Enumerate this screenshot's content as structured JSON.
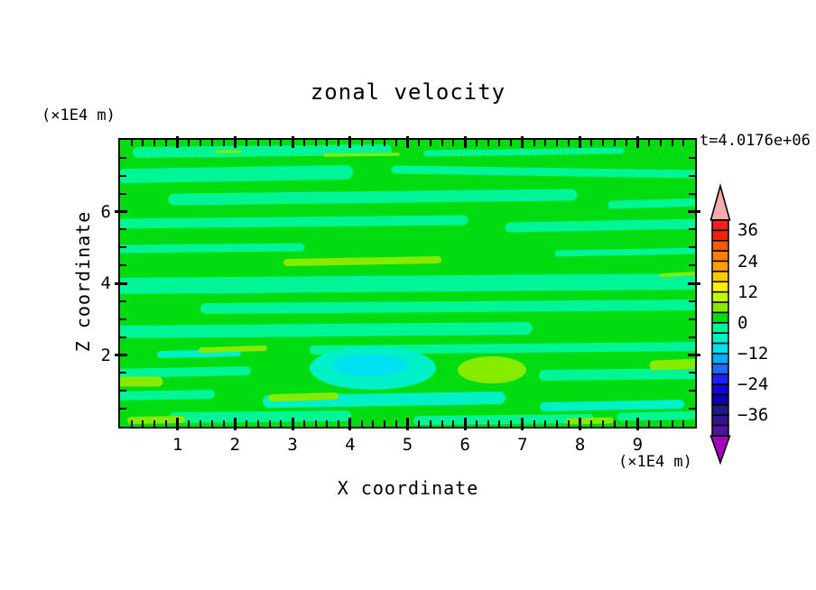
{
  "figure": {
    "title": "zonal velocity",
    "time_annotation": "t=4.0176e+06"
  },
  "x_axis": {
    "title": "X coordinate",
    "unit": "(×1E4 m)",
    "range": [
      0,
      10
    ],
    "major_ticks": [
      1,
      2,
      3,
      4,
      5,
      6,
      7,
      8,
      9
    ],
    "minor_tick_step": 0.2
  },
  "y_axis": {
    "title": "Z coordinate",
    "unit": "(×1E4 m)",
    "range": [
      0,
      8
    ],
    "major_ticks": [
      2,
      4,
      6
    ],
    "minor_tick_step": 0.5
  },
  "colorbar": {
    "labels": [
      "36",
      "24",
      "12",
      "0",
      "−12",
      "−24",
      "−36"
    ],
    "arrow_top_color": "#F5ABAB",
    "arrow_bottom_color": "#A500BE",
    "cells": [
      {
        "range": [
          36,
          40
        ],
        "color": "#FA1E1E"
      },
      {
        "range": [
          32,
          36
        ],
        "color": "#F52000"
      },
      {
        "range": [
          28,
          32
        ],
        "color": "#FF5A00"
      },
      {
        "range": [
          24,
          28
        ],
        "color": "#FF7D00"
      },
      {
        "range": [
          20,
          24
        ],
        "color": "#FFA000"
      },
      {
        "range": [
          16,
          20
        ],
        "color": "#FFC800"
      },
      {
        "range": [
          12,
          16
        ],
        "color": "#FFF000"
      },
      {
        "range": [
          8,
          12
        ],
        "color": "#C8F500"
      },
      {
        "range": [
          4,
          8
        ],
        "color": "#87EB00"
      },
      {
        "range": [
          0,
          4
        ],
        "color": "#00DC0F"
      },
      {
        "range": [
          -4,
          0
        ],
        "color": "#00F596"
      },
      {
        "range": [
          -8,
          -4
        ],
        "color": "#00F0C8"
      },
      {
        "range": [
          -12,
          -8
        ],
        "color": "#00E1F0"
      },
      {
        "range": [
          -16,
          -12
        ],
        "color": "#00AFFA"
      },
      {
        "range": [
          -20,
          -16
        ],
        "color": "#1E69FF"
      },
      {
        "range": [
          -24,
          -20
        ],
        "color": "#1E1EFF"
      },
      {
        "range": [
          -28,
          -24
        ],
        "color": "#0F00DC"
      },
      {
        "range": [
          -32,
          -28
        ],
        "color": "#0A00AF"
      },
      {
        "range": [
          -36,
          -32
        ],
        "color": "#1E1987"
      },
      {
        "range": [
          -40,
          -36
        ],
        "color": "#32148C"
      },
      {
        "range": [
          -44,
          -40
        ],
        "color": "#50149B"
      }
    ]
  },
  "palette": {
    "background_green": "#00DC0F",
    "spring_green": "#00F596",
    "turquoise": "#00F0C8",
    "cyan": "#00E1F0",
    "chartreuse": "#87EB00"
  },
  "chart_data": {
    "type": "filled_contour",
    "title": "zonal velocity",
    "time_annotation": "t=4.0176e+06",
    "xlabel": "X coordinate",
    "ylabel": "Z coordinate",
    "x_unit": "(×1E4 m)",
    "y_unit": "(×1E4 m)",
    "xlim": [
      0,
      10
    ],
    "ylim": [
      0,
      8
    ],
    "x_major_ticks": [
      1,
      2,
      3,
      4,
      5,
      6,
      7,
      8,
      9
    ],
    "x_minor_tick_step": 0.2,
    "y_major_ticks": [
      2,
      4,
      6
    ],
    "y_minor_tick_step": 0.5,
    "contour_interval": 4,
    "colorbar_labels": [
      36,
      24,
      12,
      0,
      -12,
      -24,
      -36
    ],
    "value_range_shown": [
      -44,
      40
    ],
    "grid": false,
    "legend_position": "right colorbar with out-of-range arrows",
    "field_summary": "Zonal velocity is near zero almost everywhere: broad horizontal bands alternate between 0 to 4 (green) and -4 to 0 (spring green). Thin streaks of 4 to 8 (yellow-green) appear near the top, at mid-height around x=3-5, and in the lowest fifth of the domain; patches of -8 to -4 (turquoise) and -12 to -8 (cyan) occur near the bottom around x=4-7."
  }
}
